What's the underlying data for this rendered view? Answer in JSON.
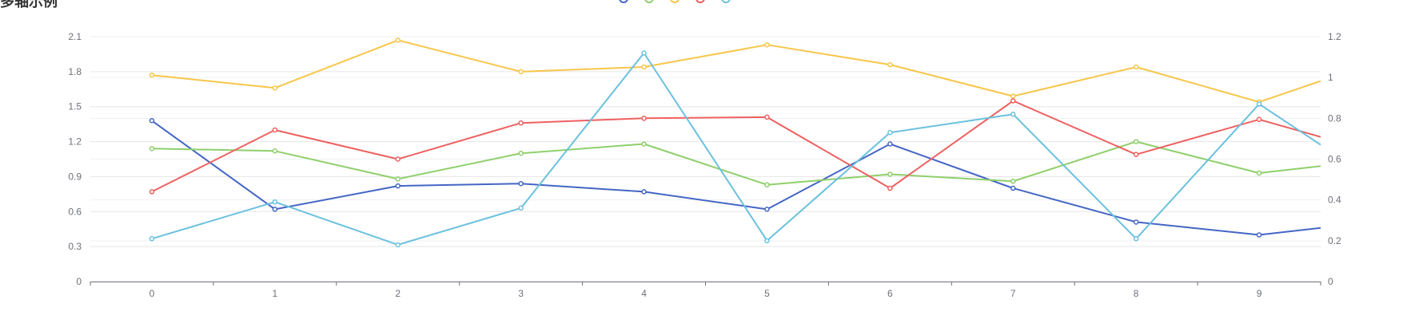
{
  "chart_data": {
    "type": "line",
    "title": "多轴示例",
    "categories": [
      "0",
      "1",
      "2",
      "3",
      "4",
      "5",
      "6",
      "7",
      "8",
      "9"
    ],
    "left_axis": {
      "ylim": [
        0,
        2.1
      ],
      "ticks": [
        "0",
        "0.3",
        "0.6",
        "0.9",
        "1.2",
        "1.5",
        "1.8",
        "2.1"
      ]
    },
    "right_axis": {
      "ylim": [
        0,
        1.2
      ],
      "ticks": [
        "0",
        "0.2",
        "0.4",
        "0.6",
        "0.8",
        "1",
        "1.2"
      ]
    },
    "x_extent": 9.5,
    "grid": true,
    "legend_placement": "top-center",
    "series": [
      {
        "color": "#4466c4",
        "axis": "left",
        "x": [
          0,
          1,
          2,
          3,
          4,
          5,
          6,
          7,
          8,
          9,
          9.5
        ],
        "values": [
          1.38,
          0.62,
          0.82,
          0.84,
          0.77,
          0.62,
          1.18,
          0.8,
          0.51,
          0.4,
          0.46
        ]
      },
      {
        "color": "#8fcf6b",
        "axis": "left",
        "x": [
          0,
          1,
          2,
          3,
          4,
          5,
          6,
          7,
          8,
          9,
          9.5
        ],
        "values": [
          1.14,
          1.12,
          0.88,
          1.1,
          1.18,
          0.83,
          0.92,
          0.86,
          1.2,
          0.93,
          0.99
        ]
      },
      {
        "color": "#f7c649",
        "axis": "left",
        "x": [
          0,
          1,
          2,
          3,
          4,
          5,
          6,
          7,
          8,
          9,
          9.5
        ],
        "values": [
          1.77,
          1.66,
          2.07,
          1.8,
          1.84,
          2.03,
          1.86,
          1.59,
          1.84,
          1.54,
          1.72
        ]
      },
      {
        "color": "#ee6060",
        "axis": "left",
        "x": [
          0,
          1,
          2,
          3,
          4,
          5,
          6,
          7,
          8,
          9,
          9.5
        ],
        "values": [
          0.77,
          1.3,
          1.05,
          1.36,
          1.4,
          1.41,
          0.8,
          1.55,
          1.09,
          1.39,
          1.24
        ]
      },
      {
        "color": "#6bc1de",
        "axis": "right",
        "x": [
          0,
          1,
          2,
          3,
          4,
          5,
          6,
          7,
          8,
          9,
          9.5
        ],
        "values": [
          0.21,
          0.39,
          0.18,
          0.36,
          1.12,
          0.2,
          0.73,
          0.82,
          0.21,
          0.87,
          0.67
        ]
      }
    ]
  }
}
